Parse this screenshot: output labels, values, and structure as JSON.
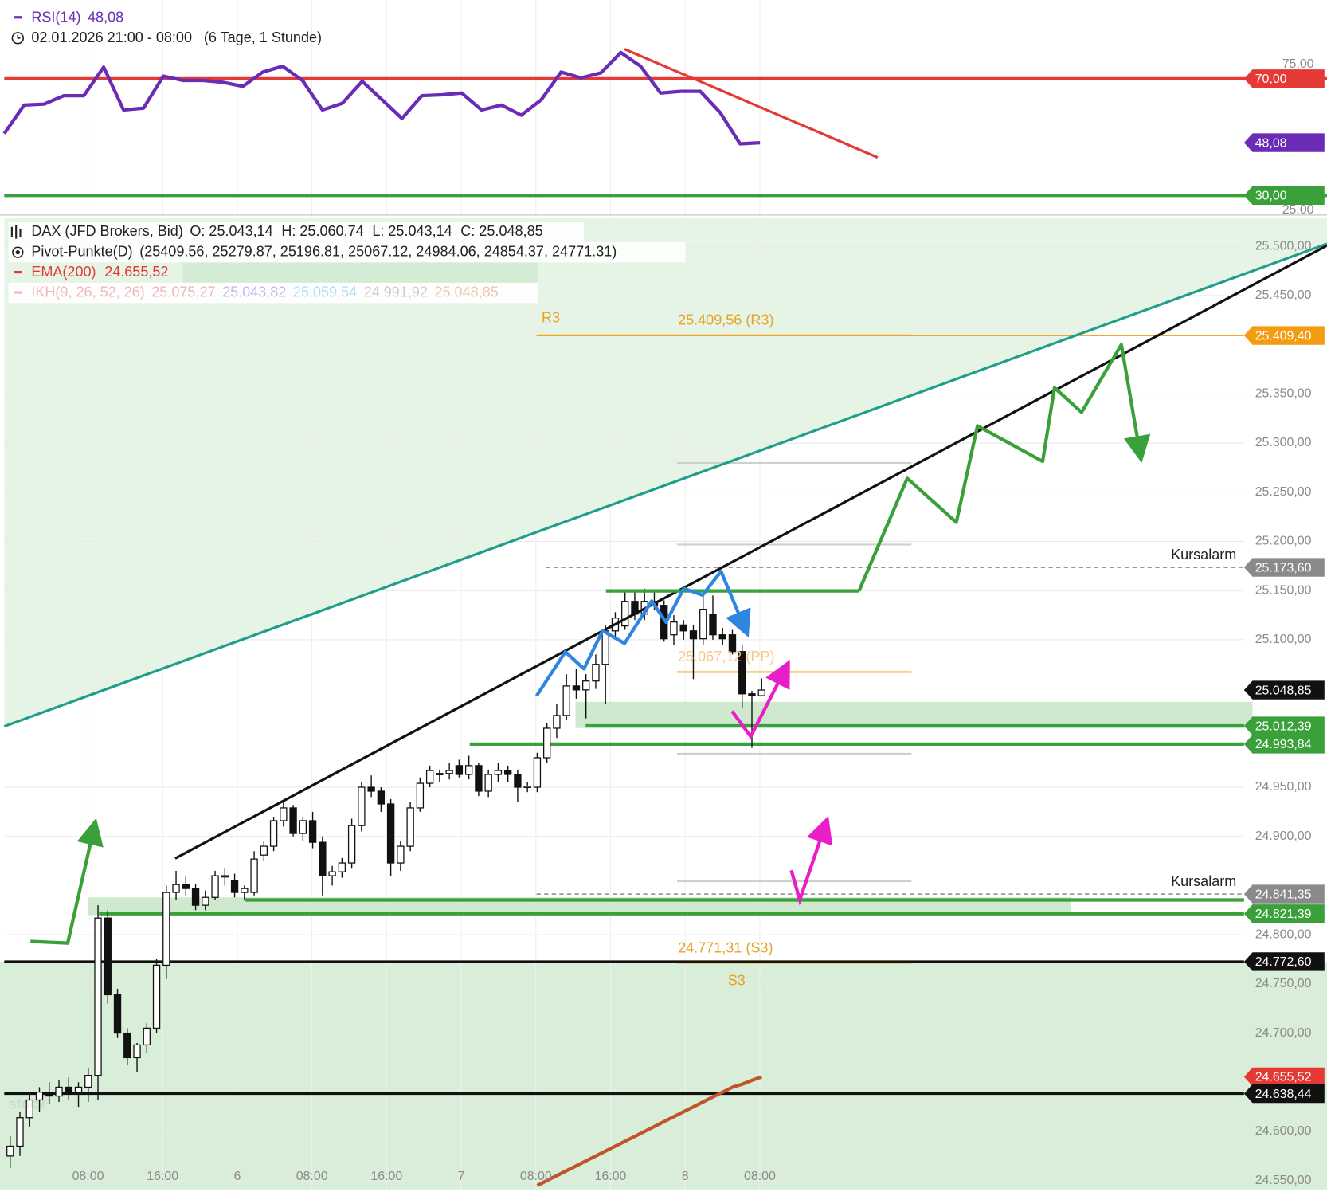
{
  "chart_data": [
    {
      "type": "line",
      "subtitle": "02.01.2026 21:00 - 08:00",
      "period": "(6 Tage, 1 Stunde)",
      "series": [
        {
          "name": "RSI(14)",
          "color": "#6a2bb5",
          "values": [
            51.2,
            61,
            61.3,
            64.2,
            64.2,
            74,
            59.3,
            59.9,
            70.9,
            69.4,
            69.4,
            68.8,
            67.4,
            72.3,
            74.3,
            69.4,
            59.3,
            61.6,
            69.1,
            62.8,
            56.4,
            64.2,
            64.5,
            65.1,
            59.3,
            61,
            57.5,
            62.8,
            72.3,
            70.3,
            72,
            79,
            74.3,
            65.1,
            65.7,
            65.7,
            58.4,
            47.7,
            48.08
          ]
        }
      ],
      "ylim": [
        23,
        97
      ],
      "yticks": [
        {
          "value": 75,
          "label": "75,00"
        },
        {
          "value": 25,
          "label": "25,00"
        }
      ],
      "levels": [
        {
          "value": 70,
          "label": "70,00",
          "color": "#e53935"
        },
        {
          "value": 48.08,
          "label": "48,08",
          "color": "#6a2bb5"
        },
        {
          "value": 30,
          "label": "30,00",
          "color": "#3aa13a"
        }
      ]
    },
    {
      "type": "candlestick",
      "legend": [
        {
          "name": "DAX (JFD Brokers, Bid)",
          "items": [
            "O: 25.043,14",
            "H: 25.060,74",
            "L: 25.043,14",
            "C: 25.048,85"
          ]
        },
        {
          "name": "Pivot-Punkte(D)",
          "items": [
            "(25409.56, 25279.87, 25196.81, 25067.12, 24984.06, 24854.37, 24771.31)"
          ]
        },
        {
          "name": "IKH(9, 26, 52, 26)",
          "items": [
            "25.075,27",
            "25.043,82",
            "25.059,54",
            "24.991,92",
            "25.048,85"
          ],
          "colors": [
            "#f0b8b8",
            "#c9b8f0",
            "#aee0f5",
            "#cfcfcf",
            "#f0c8a8"
          ]
        }
      ],
      "open": [
        24575,
        24585,
        24614,
        24632,
        24640,
        24636,
        24645,
        24640,
        24645,
        24657,
        24817,
        24739,
        24700,
        24675,
        24688,
        24705,
        24769,
        24843,
        24851,
        24847,
        24830,
        24838,
        24860,
        24855,
        24843,
        24843,
        24881,
        24890,
        24916,
        24929,
        24903,
        24916,
        24894,
        24860,
        24864,
        24873,
        24911,
        24950,
        24946,
        24933,
        24873,
        24890,
        24929,
        24954,
        24963,
        24964,
        24972,
        24963,
        24972,
        24946,
        24963,
        24967,
        24963,
        24950,
        24950,
        24980,
        25010,
        25023,
        25053,
        25049,
        25058,
        25075,
        25109,
        25114,
        25139,
        25126,
        25139,
        25135,
        25105,
        25115,
        25109,
        25101,
        25126,
        25105,
        25105,
        25088,
        25045,
        25043.14
      ],
      "high": [
        24595,
        24620,
        24640,
        24645,
        24650,
        24652,
        24655,
        24650,
        24665,
        24830,
        24825,
        24745,
        24705,
        24690,
        24710,
        24775,
        24850,
        24865,
        24860,
        24852,
        24845,
        24865,
        24868,
        24862,
        24850,
        24885,
        24895,
        24920,
        24935,
        24932,
        24920,
        24925,
        24900,
        24870,
        24878,
        24918,
        24955,
        24962,
        24950,
        24938,
        24895,
        24935,
        24960,
        24972,
        24968,
        24975,
        24978,
        24982,
        24975,
        24968,
        24975,
        24972,
        24968,
        24955,
        24985,
        25015,
        25035,
        25065,
        25070,
        25065,
        25085,
        25115,
        25128,
        25150,
        25150,
        25152,
        25150,
        25140,
        25125,
        25120,
        25115,
        25150,
        25145,
        25112,
        25110,
        25095,
        25048,
        25060.74
      ],
      "low": [
        24563,
        24575,
        24605,
        24620,
        24628,
        24630,
        24632,
        24625,
        24630,
        24632,
        24730,
        24695,
        24668,
        24660,
        24680,
        24700,
        24755,
        24835,
        24840,
        24825,
        24825,
        24835,
        24850,
        24838,
        24835,
        24840,
        24875,
        24885,
        24910,
        24900,
        24895,
        24888,
        24840,
        24850,
        24858,
        24868,
        24905,
        24940,
        24925,
        24860,
        24865,
        24885,
        24925,
        24950,
        24955,
        24958,
        24960,
        24958,
        24941,
        24940,
        24955,
        24955,
        24935,
        24945,
        24945,
        24975,
        25000,
        25018,
        25040,
        25020,
        25050,
        25035,
        25100,
        25110,
        25120,
        25120,
        25130,
        25098,
        25095,
        25100,
        25060,
        25095,
        25100,
        25095,
        25085,
        25030,
        24990,
        25043.14
      ],
      "close": [
        24585,
        24614,
        24632,
        24640,
        24636,
        24645,
        24640,
        24645,
        24657,
        24817,
        24739,
        24700,
        24675,
        24688,
        24705,
        24769,
        24843,
        24851,
        24847,
        24830,
        24838,
        24860,
        24860,
        24843,
        24847,
        24877,
        24890,
        24916,
        24929,
        24903,
        24916,
        24894,
        24860,
        24864,
        24873,
        24911,
        24950,
        24946,
        24933,
        24873,
        24890,
        24929,
        24954,
        24967,
        24964,
        24967,
        24963,
        24972,
        24946,
        24963,
        24967,
        24963,
        24950,
        24951,
        24980,
        25010,
        25023,
        25053,
        25049,
        25058,
        25075,
        25109,
        25122,
        25139,
        25126,
        25139,
        25135,
        25101,
        25118,
        25109,
        25101,
        25131,
        25105,
        25101,
        25088,
        25045,
        25043,
        25048.85
      ],
      "series": [
        {
          "name": "EMA(200)",
          "color": "#c0552b",
          "value_label": "24.655,52",
          "values": [
            null,
            null,
            null,
            null,
            null,
            null,
            null,
            null,
            null,
            null,
            null,
            null,
            null,
            null,
            null,
            null,
            null,
            null,
            null,
            null,
            null,
            null,
            null,
            null,
            null,
            null,
            null,
            null,
            null,
            null,
            null,
            null,
            null,
            null,
            null,
            null,
            null,
            null,
            null,
            null,
            null,
            null,
            null,
            null,
            null,
            null,
            null,
            null,
            null,
            null,
            null,
            null,
            null,
            null,
            24545,
            24550,
            24555,
            24560,
            24565,
            24570,
            24575,
            24580,
            24585,
            24590,
            24595,
            24600,
            24605,
            24610,
            24615,
            24620,
            24625,
            24630,
            24635,
            24640,
            24645,
            24648,
            24652,
            24655.52
          ]
        }
      ],
      "x_labels": [
        "08:00",
        "16:00",
        "6",
        "08:00",
        "16:00",
        "7",
        "08:00",
        "16:00",
        "8",
        "08:00"
      ],
      "ylim": [
        24541,
        25531
      ],
      "yticks": [
        {
          "value": 25500,
          "label": "25.500,00"
        },
        {
          "value": 25450,
          "label": "25.450,00"
        },
        {
          "value": 25350,
          "label": "25.350,00"
        },
        {
          "value": 25300,
          "label": "25.300,00"
        },
        {
          "value": 25250,
          "label": "25.250,00"
        },
        {
          "value": 25200,
          "label": "25.200,00"
        },
        {
          "value": 25150,
          "label": "25.150,00"
        },
        {
          "value": 25100,
          "label": "25.100,00"
        },
        {
          "value": 24950,
          "label": "24.950,00"
        },
        {
          "value": 24900,
          "label": "24.900,00"
        },
        {
          "value": 24800,
          "label": "24.800,00"
        },
        {
          "value": 24750,
          "label": "24.750,00"
        },
        {
          "value": 24700,
          "label": "24.700,00"
        },
        {
          "value": 24600,
          "label": "24.600,00"
        },
        {
          "value": 24550,
          "label": "24.550,00"
        }
      ],
      "grid": true,
      "pivots": {
        "values": [
          25409.56,
          25279.87,
          25196.81,
          25067.12,
          24984.06,
          24854.37,
          24771.31
        ],
        "value_labels": [
          "25.409,56 (R3)",
          null,
          null,
          "25.067,12 (PP)",
          null,
          null,
          "24.771,31 (S3)"
        ],
        "names": [
          "R3",
          null,
          null,
          null,
          null,
          null,
          "S3"
        ]
      },
      "levels": [
        {
          "value": 25409.4,
          "label": "25.409,40",
          "color": "#f39c12"
        },
        {
          "value": 25173.6,
          "label": "25.173,60",
          "color": "#8a8a8a",
          "alert": "Kursalarm"
        },
        {
          "value": 25048.85,
          "label": "25.048,85",
          "color": "#111111"
        },
        {
          "value": 25012.39,
          "label": "25.012,39",
          "color": "#3aa13a"
        },
        {
          "value": 24993.84,
          "label": "24.993,84",
          "color": "#3aa13a"
        },
        {
          "value": 24841.35,
          "label": "24.841,35",
          "color": "#8a8a8a",
          "alert": "Kursalarm"
        },
        {
          "value": 24821.39,
          "label": "24.821,39",
          "color": "#3aa13a"
        },
        {
          "value": 24772.6,
          "label": "24.772,60",
          "color": "#111111"
        },
        {
          "value": 24655.52,
          "label": "24.655,52",
          "color": "#e53935"
        },
        {
          "value": 24638.44,
          "label": "24.638,44",
          "color": "#111111"
        }
      ],
      "watermark": "stock³"
    }
  ]
}
